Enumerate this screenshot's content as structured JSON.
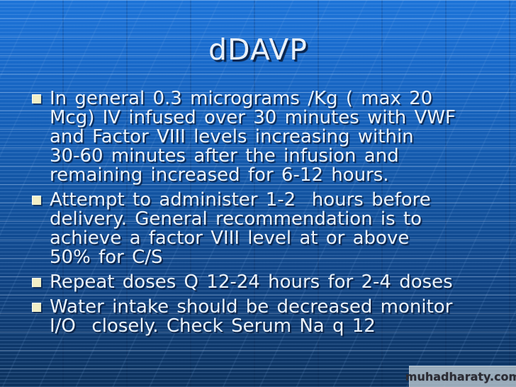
{
  "slide": {
    "title": "dDAVP",
    "bullets": [
      {
        "lines": [
          "In general 0.3 micrograms /Kg ( max 20",
          "Mcg) IV infused over 30 minutes with VWF",
          "and Factor VIII levels increasing within",
          "30-60 minutes after the infusion and",
          "remaining increased for 6-12 hours."
        ]
      },
      {
        "lines": [
          "Attempt to administer 1-2  hours before",
          "delivery. General recommendation is to",
          "achieve a factor VIII level at or above",
          "50% for C/S"
        ]
      },
      {
        "lines": [
          "Repeat doses Q 12-24 hours for 2-4 doses"
        ]
      },
      {
        "lines": [
          "Water intake should be decreased monitor",
          "I/O  closely. Check Serum Na q 12"
        ]
      }
    ]
  },
  "watermark": {
    "text": "muhadharaty.com"
  },
  "colors": {
    "background_top": "#1d74d8",
    "background_bottom": "#0d325d",
    "text": "#eaf2fa",
    "bullet_square": "#f2efc6",
    "text_shadow": "#061634",
    "watermark_bg": "#b1bfc9",
    "watermark_text": "#2c2c34"
  }
}
